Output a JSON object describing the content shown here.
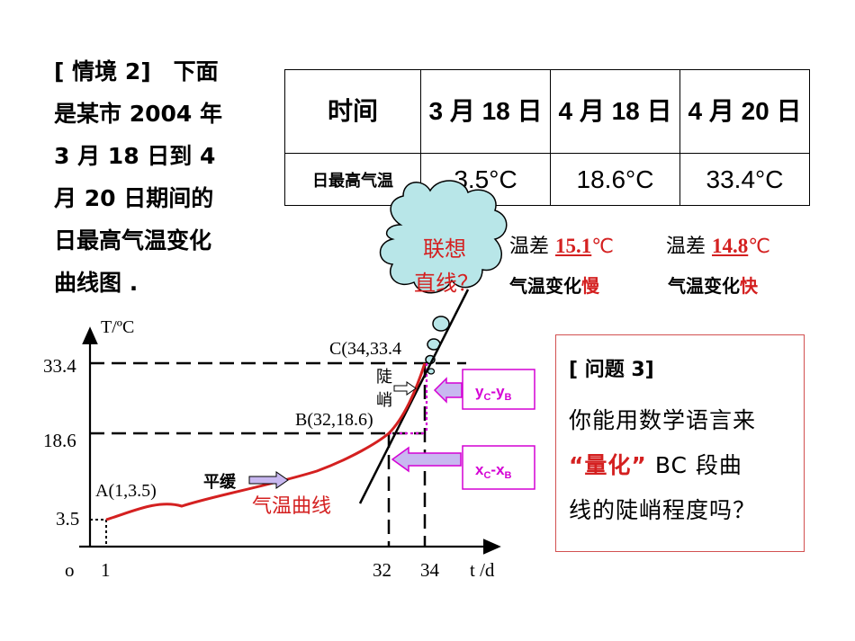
{
  "intro": {
    "lines": [
      "[ 情境 2]　下面",
      "是某市 2004 年",
      "3 月 18 日到 4",
      "月 20 日期间的",
      "日最高气温变化",
      "曲线图 ."
    ]
  },
  "table": {
    "headers": [
      "时间",
      "3 月 18 日",
      "4 月 18 日",
      "4 月 20 日"
    ],
    "row_label": "日最高气温",
    "values": [
      "3.5°C",
      "18.6°C",
      "33.4°C"
    ]
  },
  "differences": [
    {
      "label": "温差",
      "value": "15.1",
      "unit": "℃",
      "note_prefix": "气温变化",
      "note_emph": "慢"
    },
    {
      "label": "温差",
      "value": "14.8",
      "unit": "℃",
      "note_prefix": "气温变化",
      "note_emph": "快"
    }
  ],
  "cloud": {
    "line1": "联想",
    "line2": "直线？"
  },
  "graph": {
    "y_axis_label": "T/ºC",
    "x_axis_label": "t /d",
    "origin": "o",
    "y_ticks": [
      "33.4",
      "18.6",
      "3.5"
    ],
    "x_ticks": [
      "1",
      "32",
      "34"
    ],
    "points": {
      "A": "A(1,3.5)",
      "B": "B(32,18.6)",
      "C": "C(34,33.4"
    },
    "steep_label": [
      "陡",
      "峭"
    ],
    "gentle_label": "平缓",
    "curve_label": "气温曲线",
    "dy_box": {
      "main": "y",
      "sub1": "C",
      "sep": "-y",
      "sub2": "B"
    },
    "dx_box": {
      "main": "x",
      "sub1": "C",
      "sep": "-x",
      "sub2": "B"
    },
    "colors": {
      "curve": "#d42020",
      "box": "#d400d4",
      "arrow_fill": "#c8b8f0"
    }
  },
  "question": {
    "title": "[ 问题 3]",
    "line1": "你能用数学语言来",
    "line2_emph": "“量化”",
    "line2_rest": " BC 段曲",
    "line3": "线的陡峭程度吗？"
  }
}
